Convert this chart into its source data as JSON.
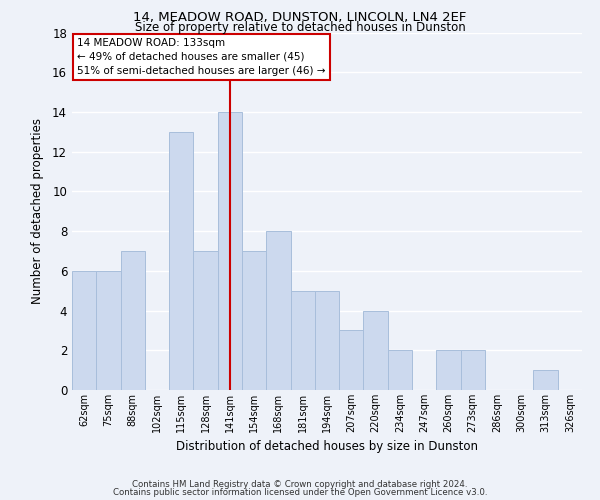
{
  "title1": "14, MEADOW ROAD, DUNSTON, LINCOLN, LN4 2EF",
  "title2": "Size of property relative to detached houses in Dunston",
  "xlabel": "Distribution of detached houses by size in Dunston",
  "ylabel": "Number of detached properties",
  "categories": [
    "62sqm",
    "75sqm",
    "88sqm",
    "102sqm",
    "115sqm",
    "128sqm",
    "141sqm",
    "154sqm",
    "168sqm",
    "181sqm",
    "194sqm",
    "207sqm",
    "220sqm",
    "234sqm",
    "247sqm",
    "260sqm",
    "273sqm",
    "286sqm",
    "300sqm",
    "313sqm",
    "326sqm"
  ],
  "values": [
    6,
    6,
    7,
    0,
    13,
    7,
    14,
    7,
    8,
    5,
    5,
    3,
    4,
    2,
    0,
    2,
    2,
    0,
    0,
    1,
    0
  ],
  "bar_color": "#ccd9ee",
  "bar_edge_color": "#a8bedb",
  "vline_x": 6,
  "ylim": [
    0,
    18
  ],
  "yticks": [
    0,
    2,
    4,
    6,
    8,
    10,
    12,
    14,
    16,
    18
  ],
  "annotation_line1": "14 MEADOW ROAD: 133sqm",
  "annotation_line2": "← 49% of detached houses are smaller (45)",
  "annotation_line3": "51% of semi-detached houses are larger (46) →",
  "footer1": "Contains HM Land Registry data © Crown copyright and database right 2024.",
  "footer2": "Contains public sector information licensed under the Open Government Licence v3.0.",
  "vline_color": "#cc0000",
  "annotation_box_color": "#ffffff",
  "annotation_box_edge": "#cc0000",
  "background_color": "#eef2f9",
  "grid_color": "#ffffff"
}
